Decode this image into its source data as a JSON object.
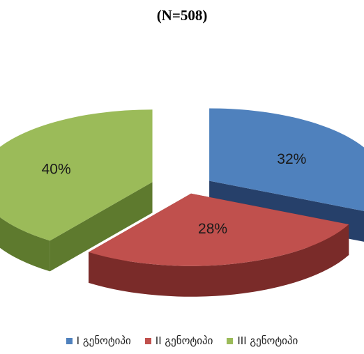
{
  "chart_data": {
    "type": "pie",
    "title": "(N=508)",
    "categories": [
      "I გენოტიპი",
      "II გენოტიპი",
      "III გენოტიპი"
    ],
    "values": [
      32,
      28,
      40
    ],
    "labels": [
      "32%",
      "28%",
      "40%"
    ],
    "colors": [
      "#4f81bd",
      "#c0504d",
      "#9bbb59"
    ],
    "side_colors": [
      "#26406a",
      "#7a2b29",
      "#5e7a2e"
    ],
    "legend_position": "bottom",
    "style": "exploded 3d"
  }
}
